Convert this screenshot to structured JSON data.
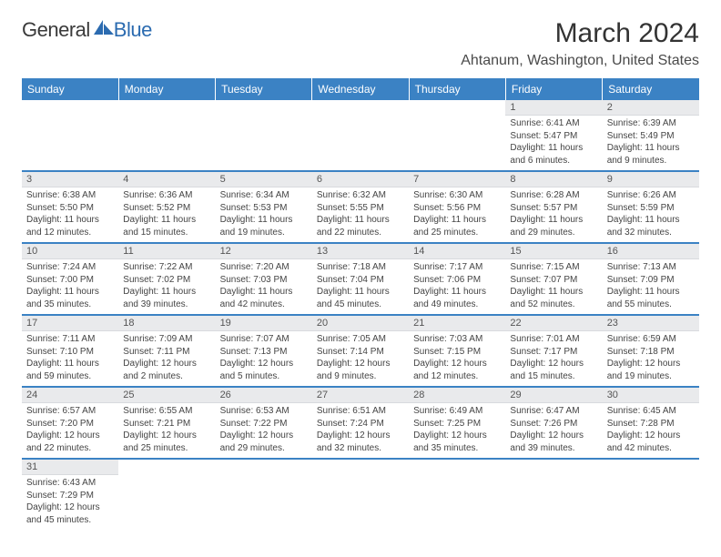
{
  "logo": {
    "text1": "General",
    "text2": "Blue"
  },
  "title": "March 2024",
  "location": "Ahtanum, Washington, United States",
  "colors": {
    "header_bg": "#3b82c4",
    "header_fg": "#ffffff",
    "daynum_bg": "#e9eaec",
    "row_border": "#3b82c4"
  },
  "weekdays": [
    "Sunday",
    "Monday",
    "Tuesday",
    "Wednesday",
    "Thursday",
    "Friday",
    "Saturday"
  ],
  "weeks": [
    [
      null,
      null,
      null,
      null,
      null,
      {
        "n": "1",
        "sunrise": "Sunrise: 6:41 AM",
        "sunset": "Sunset: 5:47 PM",
        "daylight": "Daylight: 11 hours and 6 minutes."
      },
      {
        "n": "2",
        "sunrise": "Sunrise: 6:39 AM",
        "sunset": "Sunset: 5:49 PM",
        "daylight": "Daylight: 11 hours and 9 minutes."
      }
    ],
    [
      {
        "n": "3",
        "sunrise": "Sunrise: 6:38 AM",
        "sunset": "Sunset: 5:50 PM",
        "daylight": "Daylight: 11 hours and 12 minutes."
      },
      {
        "n": "4",
        "sunrise": "Sunrise: 6:36 AM",
        "sunset": "Sunset: 5:52 PM",
        "daylight": "Daylight: 11 hours and 15 minutes."
      },
      {
        "n": "5",
        "sunrise": "Sunrise: 6:34 AM",
        "sunset": "Sunset: 5:53 PM",
        "daylight": "Daylight: 11 hours and 19 minutes."
      },
      {
        "n": "6",
        "sunrise": "Sunrise: 6:32 AM",
        "sunset": "Sunset: 5:55 PM",
        "daylight": "Daylight: 11 hours and 22 minutes."
      },
      {
        "n": "7",
        "sunrise": "Sunrise: 6:30 AM",
        "sunset": "Sunset: 5:56 PM",
        "daylight": "Daylight: 11 hours and 25 minutes."
      },
      {
        "n": "8",
        "sunrise": "Sunrise: 6:28 AM",
        "sunset": "Sunset: 5:57 PM",
        "daylight": "Daylight: 11 hours and 29 minutes."
      },
      {
        "n": "9",
        "sunrise": "Sunrise: 6:26 AM",
        "sunset": "Sunset: 5:59 PM",
        "daylight": "Daylight: 11 hours and 32 minutes."
      }
    ],
    [
      {
        "n": "10",
        "sunrise": "Sunrise: 7:24 AM",
        "sunset": "Sunset: 7:00 PM",
        "daylight": "Daylight: 11 hours and 35 minutes."
      },
      {
        "n": "11",
        "sunrise": "Sunrise: 7:22 AM",
        "sunset": "Sunset: 7:02 PM",
        "daylight": "Daylight: 11 hours and 39 minutes."
      },
      {
        "n": "12",
        "sunrise": "Sunrise: 7:20 AM",
        "sunset": "Sunset: 7:03 PM",
        "daylight": "Daylight: 11 hours and 42 minutes."
      },
      {
        "n": "13",
        "sunrise": "Sunrise: 7:18 AM",
        "sunset": "Sunset: 7:04 PM",
        "daylight": "Daylight: 11 hours and 45 minutes."
      },
      {
        "n": "14",
        "sunrise": "Sunrise: 7:17 AM",
        "sunset": "Sunset: 7:06 PM",
        "daylight": "Daylight: 11 hours and 49 minutes."
      },
      {
        "n": "15",
        "sunrise": "Sunrise: 7:15 AM",
        "sunset": "Sunset: 7:07 PM",
        "daylight": "Daylight: 11 hours and 52 minutes."
      },
      {
        "n": "16",
        "sunrise": "Sunrise: 7:13 AM",
        "sunset": "Sunset: 7:09 PM",
        "daylight": "Daylight: 11 hours and 55 minutes."
      }
    ],
    [
      {
        "n": "17",
        "sunrise": "Sunrise: 7:11 AM",
        "sunset": "Sunset: 7:10 PM",
        "daylight": "Daylight: 11 hours and 59 minutes."
      },
      {
        "n": "18",
        "sunrise": "Sunrise: 7:09 AM",
        "sunset": "Sunset: 7:11 PM",
        "daylight": "Daylight: 12 hours and 2 minutes."
      },
      {
        "n": "19",
        "sunrise": "Sunrise: 7:07 AM",
        "sunset": "Sunset: 7:13 PM",
        "daylight": "Daylight: 12 hours and 5 minutes."
      },
      {
        "n": "20",
        "sunrise": "Sunrise: 7:05 AM",
        "sunset": "Sunset: 7:14 PM",
        "daylight": "Daylight: 12 hours and 9 minutes."
      },
      {
        "n": "21",
        "sunrise": "Sunrise: 7:03 AM",
        "sunset": "Sunset: 7:15 PM",
        "daylight": "Daylight: 12 hours and 12 minutes."
      },
      {
        "n": "22",
        "sunrise": "Sunrise: 7:01 AM",
        "sunset": "Sunset: 7:17 PM",
        "daylight": "Daylight: 12 hours and 15 minutes."
      },
      {
        "n": "23",
        "sunrise": "Sunrise: 6:59 AM",
        "sunset": "Sunset: 7:18 PM",
        "daylight": "Daylight: 12 hours and 19 minutes."
      }
    ],
    [
      {
        "n": "24",
        "sunrise": "Sunrise: 6:57 AM",
        "sunset": "Sunset: 7:20 PM",
        "daylight": "Daylight: 12 hours and 22 minutes."
      },
      {
        "n": "25",
        "sunrise": "Sunrise: 6:55 AM",
        "sunset": "Sunset: 7:21 PM",
        "daylight": "Daylight: 12 hours and 25 minutes."
      },
      {
        "n": "26",
        "sunrise": "Sunrise: 6:53 AM",
        "sunset": "Sunset: 7:22 PM",
        "daylight": "Daylight: 12 hours and 29 minutes."
      },
      {
        "n": "27",
        "sunrise": "Sunrise: 6:51 AM",
        "sunset": "Sunset: 7:24 PM",
        "daylight": "Daylight: 12 hours and 32 minutes."
      },
      {
        "n": "28",
        "sunrise": "Sunrise: 6:49 AM",
        "sunset": "Sunset: 7:25 PM",
        "daylight": "Daylight: 12 hours and 35 minutes."
      },
      {
        "n": "29",
        "sunrise": "Sunrise: 6:47 AM",
        "sunset": "Sunset: 7:26 PM",
        "daylight": "Daylight: 12 hours and 39 minutes."
      },
      {
        "n": "30",
        "sunrise": "Sunrise: 6:45 AM",
        "sunset": "Sunset: 7:28 PM",
        "daylight": "Daylight: 12 hours and 42 minutes."
      }
    ],
    [
      {
        "n": "31",
        "sunrise": "Sunrise: 6:43 AM",
        "sunset": "Sunset: 7:29 PM",
        "daylight": "Daylight: 12 hours and 45 minutes."
      },
      null,
      null,
      null,
      null,
      null,
      null
    ]
  ]
}
